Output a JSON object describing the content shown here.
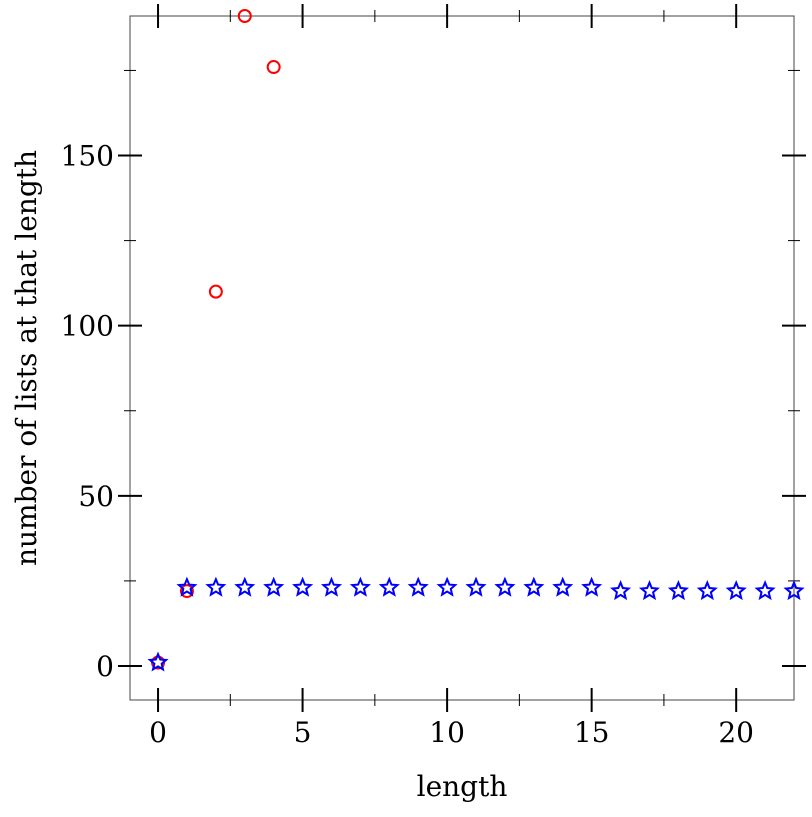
{
  "chart_data": {
    "type": "scatter",
    "x_label": "length",
    "y_label": "number of lists at that length",
    "xlim": [
      -0.97,
      22
    ],
    "ylim": [
      -10,
      191
    ],
    "xticks": [
      0,
      5,
      10,
      15,
      20
    ],
    "yticks": [
      0,
      50,
      100,
      150
    ],
    "xminor_ticks": [
      2.5,
      7.5,
      12.5,
      17.5
    ],
    "yminor_ticks": [
      25,
      75,
      125,
      175
    ],
    "series": [
      {
        "color": "#ff0000",
        "marker": "circle",
        "x": [
          0,
          1,
          2,
          3,
          4
        ],
        "values": [
          1,
          22,
          110,
          191,
          176
        ]
      },
      {
        "color": "#0000ff",
        "marker": "star",
        "x": [
          0,
          1,
          2,
          3,
          4,
          5,
          6,
          7,
          8,
          9,
          10,
          11,
          12,
          13,
          14,
          15,
          16,
          17,
          18,
          19,
          20,
          21,
          22
        ],
        "values": [
          1,
          23,
          23,
          23,
          23,
          23,
          23,
          23,
          23,
          23,
          23,
          23,
          23,
          23,
          23,
          23,
          22,
          22,
          22,
          22,
          22,
          22,
          22
        ]
      }
    ]
  }
}
